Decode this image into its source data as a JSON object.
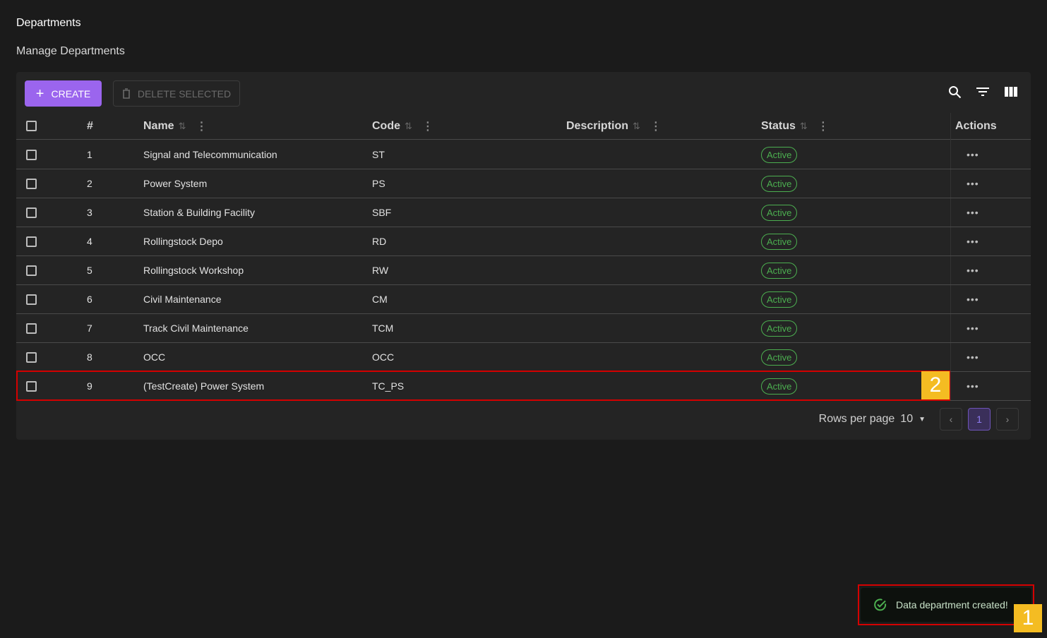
{
  "page": {
    "title": "Departments",
    "subtitle": "Manage Departments"
  },
  "toolbar": {
    "create_label": "CREATE",
    "delete_label": "DELETE SELECTED",
    "icons": [
      "search-icon",
      "filter-icon",
      "columns-icon"
    ]
  },
  "table": {
    "columns": [
      "#",
      "Name",
      "Code",
      "Description",
      "Status",
      "Actions"
    ],
    "rows": [
      {
        "n": "1",
        "name": "Signal and Telecommunication",
        "code": "ST",
        "description": "",
        "status": "Active"
      },
      {
        "n": "2",
        "name": "Power System",
        "code": "PS",
        "description": "",
        "status": "Active"
      },
      {
        "n": "3",
        "name": "Station & Building Facility",
        "code": "SBF",
        "description": "",
        "status": "Active"
      },
      {
        "n": "4",
        "name": "Rollingstock Depo",
        "code": "RD",
        "description": "",
        "status": "Active"
      },
      {
        "n": "5",
        "name": "Rollingstock Workshop",
        "code": "RW",
        "description": "",
        "status": "Active"
      },
      {
        "n": "6",
        "name": "Civil Maintenance",
        "code": "CM",
        "description": "",
        "status": "Active"
      },
      {
        "n": "7",
        "name": "Track Civil Maintenance",
        "code": "TCM",
        "description": "",
        "status": "Active"
      },
      {
        "n": "8",
        "name": "OCC",
        "code": "OCC",
        "description": "",
        "status": "Active"
      },
      {
        "n": "9",
        "name": "(TestCreate) Power System",
        "code": "TC_PS",
        "description": "",
        "status": "Active"
      }
    ]
  },
  "pagination": {
    "rows_per_page_label": "Rows per page",
    "rows_per_page": "10",
    "current_page": "1"
  },
  "toast": {
    "message": "Data department created!"
  },
  "annotations": [
    "1",
    "2"
  ],
  "colors": {
    "accent": "#9b65ee",
    "status_active": "#4caf50",
    "annotation": "#d40000",
    "marker": "#f4bc22"
  }
}
